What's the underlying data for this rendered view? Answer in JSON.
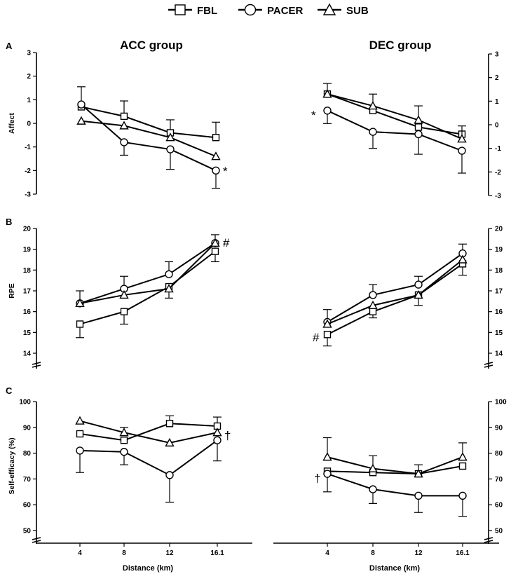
{
  "legend": [
    {
      "name": "FBL",
      "marker": "square"
    },
    {
      "name": "PACER",
      "marker": "circle"
    },
    {
      "name": "SUB",
      "marker": "triangle"
    }
  ],
  "groups": [
    "ACC group",
    "DEC group"
  ],
  "xlabel": "Distance (km)",
  "chart_data": [
    {
      "type": "line",
      "panel": "A",
      "group": "ACC group",
      "ylabel": "Affect",
      "x": [
        4,
        8,
        12,
        16.1
      ],
      "x_tick_labels": [
        "4",
        "8",
        "12",
        "16.1"
      ],
      "ylim": [
        -3,
        3
      ],
      "yticks": [
        3,
        2,
        1,
        0,
        -1,
        -2,
        -3
      ],
      "series": [
        {
          "name": "FBL",
          "values": [
            0.7,
            0.3,
            -0.4,
            -0.6
          ],
          "err_up": [
            null,
            0.95,
            0.15,
            0.05
          ],
          "err_down": [
            null,
            null,
            null,
            null
          ]
        },
        {
          "name": "PACER",
          "values": [
            0.8,
            -0.8,
            -1.1,
            -2.0
          ],
          "err_up": [
            1.55,
            null,
            null,
            null
          ],
          "err_down": [
            null,
            -1.35,
            -1.95,
            -2.75
          ]
        },
        {
          "name": "SUB",
          "values": [
            0.1,
            -0.1,
            -0.6,
            -1.4
          ],
          "err_up": [
            null,
            null,
            null,
            null
          ],
          "err_down": [
            null,
            null,
            null,
            null
          ]
        }
      ],
      "annotations": [
        {
          "text": "*",
          "near": "PACER at 16.1"
        }
      ]
    },
    {
      "type": "line",
      "panel": "A",
      "group": "DEC group",
      "ylabel": "Affect",
      "x": [
        4,
        8,
        12,
        16.1
      ],
      "x_tick_labels": [
        "4",
        "8",
        "12",
        "16.1"
      ],
      "ylim": [
        -3,
        3
      ],
      "yticks": [
        3,
        2,
        1,
        0,
        -1,
        -2,
        -3
      ],
      "series": [
        {
          "name": "FBL",
          "values": [
            1.3,
            0.6,
            -0.1,
            -0.4
          ],
          "err_up": [
            1.75,
            null,
            null,
            null
          ],
          "err_down": [
            null,
            null,
            null,
            null
          ]
        },
        {
          "name": "PACER",
          "values": [
            0.6,
            -0.3,
            -0.4,
            -1.1
          ],
          "err_up": [
            null,
            null,
            null,
            null
          ],
          "err_down": [
            0.05,
            -1.0,
            -1.25,
            -2.05
          ]
        },
        {
          "name": "SUB",
          "values": [
            1.3,
            0.8,
            0.2,
            -0.6
          ],
          "err_up": [
            null,
            1.3,
            0.8,
            -0.05
          ],
          "err_down": [
            null,
            null,
            null,
            null
          ]
        }
      ],
      "annotations": [
        {
          "text": "*",
          "near": "PACER at 4"
        }
      ]
    },
    {
      "type": "line",
      "panel": "B",
      "group": "ACC group",
      "ylabel": "RPE",
      "x": [
        4,
        8,
        12,
        16.1
      ],
      "x_tick_labels": [
        "4",
        "8",
        "12",
        "16.1"
      ],
      "ylim": [
        14,
        20
      ],
      "yticks": [
        20,
        19,
        18,
        17,
        16,
        15,
        14
      ],
      "series": [
        {
          "name": "FBL",
          "values": [
            15.4,
            16.0,
            17.2,
            18.9
          ],
          "err_up": [
            null,
            null,
            null,
            null
          ],
          "err_down": [
            14.75,
            15.4,
            16.65,
            18.4
          ]
        },
        {
          "name": "PACER",
          "values": [
            16.4,
            17.1,
            17.8,
            19.3
          ],
          "err_up": [
            17.0,
            17.7,
            18.4,
            19.7
          ],
          "err_down": [
            null,
            null,
            null,
            null
          ]
        },
        {
          "name": "SUB",
          "values": [
            16.4,
            16.8,
            17.1,
            19.3
          ],
          "err_up": [
            null,
            null,
            null,
            null
          ],
          "err_down": [
            null,
            null,
            null,
            null
          ]
        }
      ],
      "annotations": [
        {
          "text": "#",
          "near": "16.1"
        }
      ]
    },
    {
      "type": "line",
      "panel": "B",
      "group": "DEC group",
      "ylabel": "RPE",
      "x": [
        4,
        8,
        12,
        16.1
      ],
      "x_tick_labels": [
        "4",
        "8",
        "12",
        "16.1"
      ],
      "ylim": [
        14,
        20
      ],
      "yticks": [
        20,
        19,
        18,
        17,
        16,
        15,
        14
      ],
      "series": [
        {
          "name": "FBL",
          "values": [
            14.9,
            16.0,
            16.8,
            18.3
          ],
          "err_up": [
            null,
            null,
            null,
            null
          ],
          "err_down": [
            14.35,
            15.7,
            16.3,
            17.75
          ]
        },
        {
          "name": "PACER",
          "values": [
            15.5,
            16.8,
            17.3,
            18.8
          ],
          "err_up": [
            16.1,
            17.3,
            17.7,
            19.25
          ],
          "err_down": [
            null,
            null,
            null,
            null
          ]
        },
        {
          "name": "SUB",
          "values": [
            15.4,
            16.3,
            16.8,
            18.5
          ],
          "err_up": [
            null,
            null,
            null,
            null
          ],
          "err_down": [
            null,
            null,
            null,
            null
          ]
        }
      ],
      "annotations": [
        {
          "text": "#",
          "near": "FBL at 4"
        }
      ]
    },
    {
      "type": "line",
      "panel": "C",
      "group": "ACC group",
      "ylabel": "Self-efficacy (%)",
      "x": [
        4,
        8,
        12,
        16.1
      ],
      "x_tick_labels": [
        "4",
        "8",
        "12",
        "16.1"
      ],
      "ylim": [
        50,
        100
      ],
      "yticks": [
        100,
        90,
        80,
        70,
        60,
        50
      ],
      "series": [
        {
          "name": "FBL",
          "values": [
            87.5,
            85.0,
            91.5,
            90.5
          ],
          "err_up": [
            null,
            null,
            94.5,
            94.0
          ],
          "err_down": [
            null,
            null,
            null,
            null
          ]
        },
        {
          "name": "PACER",
          "values": [
            81.0,
            80.5,
            71.5,
            85.0
          ],
          "err_up": [
            null,
            null,
            null,
            null
          ],
          "err_down": [
            72.5,
            75.5,
            61.0,
            77.0
          ]
        },
        {
          "name": "SUB",
          "values": [
            92.5,
            88.0,
            84.0,
            88.0
          ],
          "err_up": [
            null,
            90.0,
            null,
            null
          ],
          "err_down": [
            null,
            null,
            null,
            null
          ]
        }
      ],
      "annotations": [
        {
          "text": "†",
          "near": "PACER at 16.1"
        }
      ]
    },
    {
      "type": "line",
      "panel": "C",
      "group": "DEC group",
      "ylabel": "Self-efficacy (%)",
      "x": [
        4,
        8,
        12,
        16.1
      ],
      "x_tick_labels": [
        "4",
        "8",
        "12",
        "16.1"
      ],
      "ylim": [
        50,
        100
      ],
      "yticks": [
        100,
        90,
        80,
        70,
        60,
        50
      ],
      "series": [
        {
          "name": "FBL",
          "values": [
            73.0,
            72.5,
            72.0,
            75.0
          ],
          "err_up": [
            null,
            null,
            null,
            null
          ],
          "err_down": [
            null,
            null,
            null,
            null
          ]
        },
        {
          "name": "PACER",
          "values": [
            72.0,
            66.0,
            63.5,
            63.5
          ],
          "err_up": [
            null,
            null,
            null,
            null
          ],
          "err_down": [
            65.0,
            60.5,
            57.0,
            55.5
          ]
        },
        {
          "name": "SUB",
          "values": [
            78.5,
            74.0,
            72.0,
            78.5
          ],
          "err_up": [
            86.0,
            79.0,
            75.5,
            84.0
          ],
          "err_down": [
            null,
            null,
            null,
            null
          ]
        }
      ],
      "annotations": [
        {
          "text": "†",
          "near": "FBL at 4"
        }
      ]
    }
  ]
}
